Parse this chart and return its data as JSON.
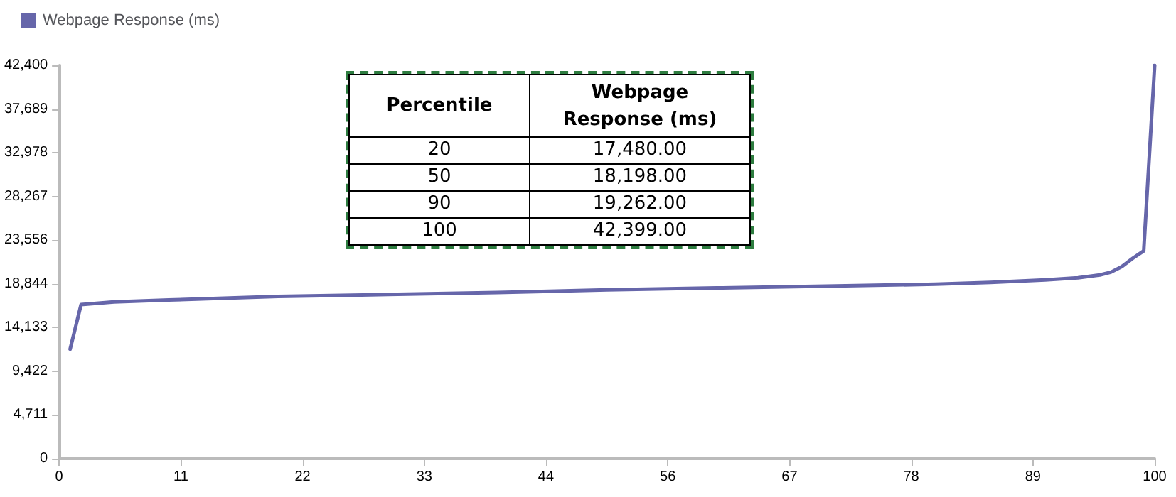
{
  "chart_data": {
    "type": "line",
    "x": [
      1,
      2,
      5,
      10,
      20,
      30,
      40,
      50,
      60,
      70,
      80,
      85,
      90,
      93,
      95,
      96,
      97,
      98,
      99,
      100
    ],
    "series": [
      {
        "name": "Webpage Response (ms)",
        "color": "#6666aa",
        "values": [
          11800,
          16600,
          16900,
          17100,
          17480,
          17700,
          17900,
          18198,
          18400,
          18600,
          18800,
          19000,
          19262,
          19500,
          19800,
          20100,
          20700,
          21600,
          22400,
          42399
        ]
      }
    ],
    "xlim": [
      0,
      100
    ],
    "xticks": [
      0,
      {
        "value": 11.111,
        "label": "11"
      },
      {
        "value": 22.222,
        "label": "22"
      },
      {
        "value": 33.333,
        "label": "33"
      },
      {
        "value": 44.444,
        "label": "44"
      },
      {
        "value": 55.556,
        "label": "56"
      },
      {
        "value": 66.667,
        "label": "67"
      },
      {
        "value": 77.778,
        "label": "78"
      },
      {
        "value": 88.889,
        "label": "89"
      },
      100
    ],
    "ylim": [
      0,
      42400
    ],
    "yticks": [
      0,
      {
        "value": 4711,
        "label": "4,711"
      },
      {
        "value": 9422,
        "label": "9,422"
      },
      {
        "value": 14133,
        "label": "14,133"
      },
      {
        "value": 18844,
        "label": "18,844"
      },
      {
        "value": 23556,
        "label": "23,556"
      },
      {
        "value": 28267,
        "label": "28,267"
      },
      {
        "value": 32978,
        "label": "32,978"
      },
      {
        "value": 37689,
        "label": "37,689"
      },
      {
        "value": 42400,
        "label": "42,400"
      }
    ],
    "grid": false,
    "legend": "top left",
    "marker": "none",
    "line_style": "solid",
    "annotations": [
      "Percentile",
      "Webpage\nResponse (ms)",
      "20",
      "17,480.00",
      "50",
      "18,198.00",
      "90",
      "19,262.00",
      "100",
      "42,399.00"
    ]
  }
}
